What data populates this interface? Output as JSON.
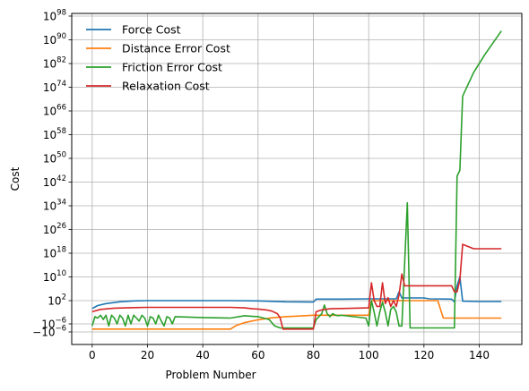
{
  "chart_data": {
    "type": "line",
    "title": "",
    "xlabel": "Problem Number",
    "ylabel": "Cost",
    "xlim": [
      -7.4,
      155.4
    ],
    "x_ticks": [
      0,
      20,
      40,
      60,
      80,
      100,
      120,
      140
    ],
    "yscale": "symlog",
    "ylim": [
      -1e-05,
      1e+98
    ],
    "y_ticks": [
      {
        "base": "10",
        "exp": "98"
      },
      {
        "base": "10",
        "exp": "90"
      },
      {
        "base": "10",
        "exp": "82"
      },
      {
        "base": "10",
        "exp": "74"
      },
      {
        "base": "10",
        "exp": "66"
      },
      {
        "base": "10",
        "exp": "58"
      },
      {
        "base": "10",
        "exp": "50"
      },
      {
        "base": "10",
        "exp": "42"
      },
      {
        "base": "10",
        "exp": "34"
      },
      {
        "base": "10",
        "exp": "26"
      },
      {
        "base": "10",
        "exp": "18"
      },
      {
        "base": "10",
        "exp": "10"
      },
      {
        "base": "10",
        "exp": "2"
      },
      {
        "base": "10",
        "exp": "−6"
      },
      {
        "base": "−10",
        "exp": "−6"
      }
    ],
    "grid": true,
    "legend_position": "top-left",
    "series": [
      {
        "name": "Force Cost",
        "color": "#1f77b4",
        "x": [
          0,
          2,
          5,
          10,
          15,
          20,
          30,
          40,
          50,
          60,
          70,
          80,
          81,
          90,
          100,
          110,
          111,
          112,
          113,
          120,
          122,
          130,
          131,
          132,
          133,
          134,
          140,
          148
        ],
        "log10_y": [
          -0.7,
          0.3,
          1.0,
          1.6,
          1.9,
          2.0,
          2.0,
          2.0,
          2.0,
          1.9,
          1.6,
          1.5,
          2.5,
          2.5,
          2.6,
          2.6,
          5.0,
          2.9,
          2.9,
          2.9,
          2.6,
          2.5,
          1.6,
          7.0,
          10.0,
          1.8,
          1.7,
          1.7
        ]
      },
      {
        "name": "Distance Error Cost",
        "color": "#ff7f0e",
        "x": [
          0,
          10,
          20,
          30,
          40,
          50,
          52,
          55,
          60,
          65,
          70,
          75,
          80,
          90,
          100,
          101,
          102,
          103,
          110,
          120,
          125,
          127,
          130,
          140,
          148
        ],
        "log10_y": [
          -8.5,
          -8.5,
          -8.5,
          -8.5,
          -8.5,
          -8.5,
          -6.8,
          -5.6,
          -4.6,
          -3.9,
          -3.5,
          -3.3,
          -3.0,
          -3.0,
          -3.0,
          2.0,
          2.0,
          2.0,
          2.0,
          2.0,
          2.0,
          -4.0,
          -4.0,
          -4.0,
          -4.0
        ]
      },
      {
        "name": "Friction Error Cost",
        "color": "#2ca02c",
        "x": [
          0,
          1,
          2,
          3,
          4,
          5,
          6,
          7,
          8,
          9,
          10,
          11,
          12,
          13,
          14,
          15,
          16,
          17,
          18,
          19,
          20,
          21,
          22,
          23,
          24,
          25,
          26,
          27,
          28,
          29,
          30,
          40,
          50,
          55,
          60,
          64,
          66,
          68,
          70,
          80,
          81,
          82,
          83,
          84,
          85,
          86,
          87,
          88,
          89,
          90,
          99,
          100,
          101,
          102,
          103,
          104,
          105,
          106,
          107,
          108,
          109,
          110,
          111,
          112,
          114,
          115,
          120,
          125,
          131,
          132,
          133,
          134,
          138,
          142,
          148
        ],
        "log10_y": [
          -7,
          -3.5,
          -4,
          -3,
          -4.5,
          -3,
          -7,
          -3,
          -4,
          -6,
          -3,
          -4,
          -7,
          -3,
          -6,
          -3,
          -4,
          -5,
          -3,
          -4,
          -7,
          -3.5,
          -4,
          -6,
          -3,
          -5,
          -7,
          -3.5,
          -4,
          -6,
          -3.5,
          -3.8,
          -4,
          -3.2,
          -3.5,
          -4.5,
          -7,
          -30,
          -30,
          -30,
          -4.5,
          -3.5,
          -2.5,
          0.5,
          -2.5,
          -3.5,
          -2.5,
          -3,
          -3.2,
          -3,
          -4,
          -7,
          2,
          -2,
          -7,
          -2,
          1.5,
          -2,
          -7,
          -1,
          0,
          -2,
          -7,
          -7,
          35,
          -30,
          -30,
          -30,
          -30,
          44,
          46,
          71,
          79,
          85,
          93
        ]
      },
      {
        "name": "Relaxation Cost",
        "color": "#d62728",
        "x": [
          0,
          3,
          8,
          15,
          20,
          30,
          40,
          50,
          55,
          58,
          60,
          63,
          65,
          67,
          68,
          69,
          70,
          80,
          81,
          83,
          86,
          90,
          100,
          101,
          102,
          103,
          104,
          105,
          106,
          107,
          108,
          109,
          110,
          111,
          112,
          113,
          115,
          120,
          130,
          131,
          132,
          133,
          134,
          138,
          148
        ],
        "log10_y": [
          -1.8,
          -1.0,
          -0.6,
          -0.4,
          -0.3,
          -0.3,
          -0.3,
          -0.3,
          -0.5,
          -0.8,
          -0.9,
          -1.2,
          -1.6,
          -2.5,
          -4.0,
          -8.5,
          -8.5,
          -8.5,
          -1.8,
          -1.2,
          -0.8,
          -0.7,
          -0.5,
          8.0,
          2.0,
          0.0,
          0.0,
          8.0,
          1.0,
          3.0,
          0.0,
          2.0,
          0.0,
          4.0,
          11.0,
          7.0,
          7.0,
          7.0,
          7.0,
          5.0,
          5.0,
          9.0,
          21.0,
          19.5,
          19.5
        ]
      }
    ]
  }
}
